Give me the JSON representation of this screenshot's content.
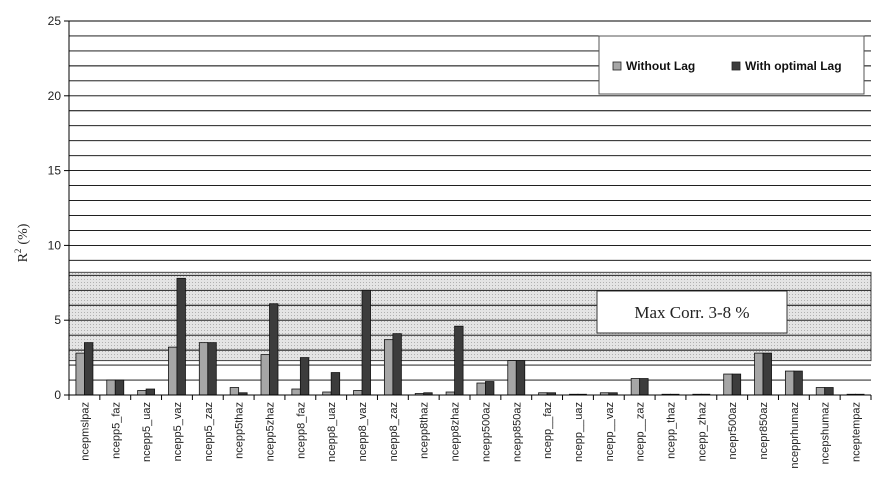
{
  "chart_data": {
    "type": "bar",
    "title": "",
    "xlabel": "",
    "ylabel": "R",
    "ylabel_sup": "2",
    "ylabel_unit": "(%)",
    "ylim": [
      0,
      25
    ],
    "yticks": [
      0,
      5,
      10,
      15,
      20,
      25
    ],
    "grid": true,
    "legend_position": "top-right",
    "categories": [
      "ncepmslpaz",
      "ncepp5_faz",
      "ncepp5_uaz",
      "ncepp5_vaz",
      "ncepp5_zaz",
      "ncepp5thaz",
      "ncepp5zhaz",
      "ncepp8_faz",
      "ncepp8_uaz",
      "ncepp8_vaz",
      "ncepp8_zaz",
      "ncepp8thaz",
      "ncepp8zhaz",
      "ncepp500az",
      "ncepp850az",
      "ncepp__faz",
      "ncepp__uaz",
      "ncepp__vaz",
      "ncepp__zaz",
      "ncepp_thaz",
      "ncepp_zhaz",
      "ncepr500az",
      "ncepr850az",
      "ncepprhumaz",
      "ncepshumaz",
      "nceptempaz"
    ],
    "series": [
      {
        "name": "Without Lag",
        "color": "#a6a6a6",
        "values": [
          2.8,
          1.0,
          0.3,
          3.2,
          3.5,
          0.5,
          2.7,
          0.4,
          0.2,
          0.3,
          3.7,
          0.1,
          0.2,
          0.8,
          2.3,
          0.15,
          0.05,
          0.15,
          1.1,
          0.05,
          0.05,
          1.4,
          2.8,
          1.6,
          0.5,
          0.05
        ]
      },
      {
        "name": "With optimal Lag",
        "color": "#3c3c3c",
        "values": [
          3.5,
          1.0,
          0.4,
          7.8,
          3.5,
          0.15,
          6.1,
          2.5,
          1.5,
          7.0,
          4.1,
          0.15,
          4.6,
          0.9,
          2.3,
          0.15,
          0.05,
          0.15,
          1.1,
          0.05,
          0.05,
          1.4,
          2.8,
          1.6,
          0.5,
          0.05
        ]
      }
    ],
    "annotation": {
      "text": "Max Corr. 3-8 %",
      "band": [
        2.3,
        8.2
      ]
    }
  }
}
